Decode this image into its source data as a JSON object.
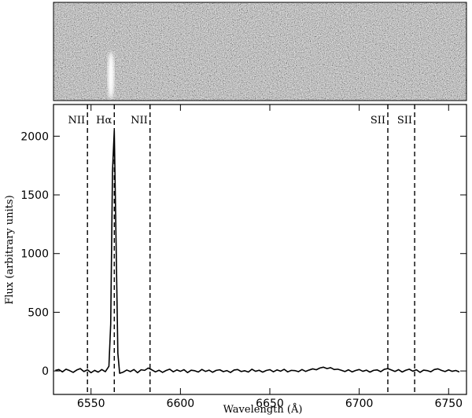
{
  "chart_data": {
    "type": "line",
    "xlabel": "Wavelength (Å)",
    "ylabel": "Flux (arbitrary units)",
    "xlim": [
      6529,
      6760
    ],
    "ylim": [
      -200,
      2270
    ],
    "xticks": [
      6550,
      6600,
      6650,
      6700,
      6750
    ],
    "yticks": [
      0,
      500,
      1000,
      1500,
      2000
    ],
    "lines": [
      {
        "x": 6548,
        "label": "NII"
      },
      {
        "x": 6563,
        "label": "Hα"
      },
      {
        "x": 6583,
        "label": "NII"
      },
      {
        "x": 6716,
        "label": "SII"
      },
      {
        "x": 6731,
        "label": "SII"
      }
    ],
    "series": [
      {
        "color": "#000000",
        "x": [
          6530,
          6532,
          6534,
          6536,
          6538,
          6540,
          6542,
          6544,
          6546,
          6548,
          6550,
          6552,
          6554,
          6556,
          6558,
          6560,
          6561,
          6562,
          6563,
          6564,
          6565,
          6566,
          6568,
          6570,
          6572,
          6574,
          6576,
          6578,
          6580,
          6582,
          6584,
          6586,
          6588,
          6590,
          6592,
          6594,
          6596,
          6598,
          6600,
          6602,
          6604,
          6606,
          6608,
          6610,
          6612,
          6614,
          6616,
          6618,
          6620,
          6622,
          6624,
          6626,
          6628,
          6630,
          6632,
          6634,
          6636,
          6638,
          6640,
          6642,
          6644,
          6646,
          6648,
          6650,
          6652,
          6654,
          6656,
          6658,
          6660,
          6662,
          6664,
          6666,
          6668,
          6670,
          6672,
          6674,
          6676,
          6678,
          6680,
          6682,
          6684,
          6686,
          6688,
          6690,
          6692,
          6694,
          6696,
          6698,
          6700,
          6702,
          6704,
          6706,
          6708,
          6710,
          6712,
          6714,
          6716,
          6718,
          6720,
          6722,
          6724,
          6726,
          6728,
          6730,
          6732,
          6734,
          6736,
          6738,
          6740,
          6742,
          6744,
          6746,
          6748,
          6750,
          6752,
          6754,
          6756
        ],
        "values": [
          5,
          12,
          -8,
          15,
          3,
          -12,
          8,
          20,
          -5,
          10,
          -15,
          5,
          -10,
          12,
          -6,
          40,
          400,
          1700,
          2050,
          1100,
          150,
          -20,
          -10,
          8,
          -5,
          12,
          -15,
          10,
          5,
          25,
          10,
          -8,
          6,
          -12,
          4,
          15,
          -7,
          9,
          -3,
          11,
          -14,
          6,
          2,
          -9,
          13,
          -4,
          7,
          -11,
          5,
          10,
          -6,
          3,
          -13,
          8,
          12,
          -5,
          2,
          -9,
          15,
          -3,
          6,
          -10,
          4,
          11,
          -7,
          9,
          -2,
          14,
          -8,
          5,
          3,
          -6,
          12,
          -4,
          8,
          18,
          10,
          25,
          32,
          20,
          28,
          12,
          15,
          6,
          -5,
          10,
          -8,
          4,
          12,
          -3,
          7,
          -10,
          5,
          9,
          -6,
          14,
          20,
          8,
          -4,
          11,
          -9,
          6,
          15,
          -2,
          10,
          -12,
          7,
          3,
          -7,
          12,
          18,
          5,
          -5,
          9,
          -3,
          4,
          -8
        ]
      }
    ]
  }
}
